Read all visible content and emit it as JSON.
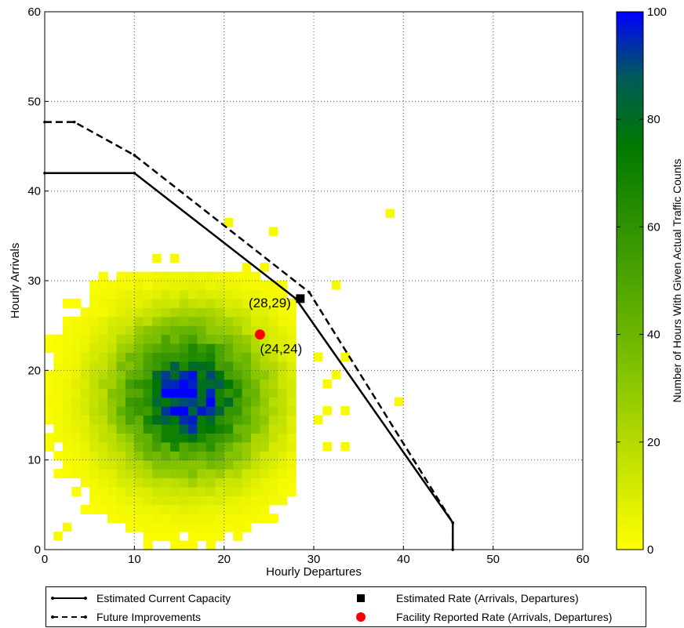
{
  "chart_data": {
    "type": "heatmap",
    "xlabel": "Hourly Departures",
    "ylabel": "Hourly Arrivals",
    "xlim": [
      0,
      60
    ],
    "ylim": [
      0,
      60
    ],
    "xticks": [
      0,
      10,
      20,
      30,
      40,
      50,
      60
    ],
    "yticks": [
      0,
      10,
      20,
      30,
      40,
      50,
      60
    ],
    "grid": true,
    "colorbar": {
      "label": "Number of Hours With Given Actual Traffic Counts",
      "range": [
        0,
        100
      ],
      "ticks": [
        0,
        20,
        40,
        60,
        80,
        100
      ],
      "colors": [
        "#ffff00",
        "#80c000",
        "#008000",
        "#0000ff"
      ]
    },
    "heatmap_model": {
      "center": [
        16,
        17
      ],
      "peak": 100,
      "sigma_x": 5.5,
      "sigma_y": 5.5,
      "extent_x": [
        0,
        28
      ],
      "extent_y": [
        0,
        31
      ]
    },
    "outliers": [
      {
        "x": 20,
        "y": 36
      },
      {
        "x": 25,
        "y": 35
      },
      {
        "x": 38,
        "y": 37
      },
      {
        "x": 32,
        "y": 29
      },
      {
        "x": 27,
        "y": 27
      },
      {
        "x": 30,
        "y": 21
      },
      {
        "x": 33,
        "y": 21
      },
      {
        "x": 32,
        "y": 19
      },
      {
        "x": 31,
        "y": 18
      },
      {
        "x": 39,
        "y": 16
      },
      {
        "x": 33,
        "y": 15
      },
      {
        "x": 31,
        "y": 15
      },
      {
        "x": 30,
        "y": 14
      },
      {
        "x": 31,
        "y": 11
      },
      {
        "x": 33,
        "y": 11
      },
      {
        "x": 12,
        "y": 32
      },
      {
        "x": 14,
        "y": 32
      },
      {
        "x": 9,
        "y": 29
      },
      {
        "x": 11,
        "y": 29
      },
      {
        "x": 6,
        "y": 26
      },
      {
        "x": 22,
        "y": 31
      },
      {
        "x": 24,
        "y": 31
      },
      {
        "x": 1,
        "y": 16
      },
      {
        "x": 1,
        "y": 1
      },
      {
        "x": 2,
        "y": 2
      }
    ],
    "series": [
      {
        "name": "Estimated Current Capacity",
        "style": "solid",
        "x": [
          0,
          10,
          28,
          45.5,
          45.5
        ],
        "y": [
          42,
          42,
          28,
          3,
          0
        ]
      },
      {
        "name": "Future Improvements",
        "style": "dashed",
        "x": [
          0,
          3.3,
          10,
          29.5,
          45.5,
          45.5
        ],
        "y": [
          47.7,
          47.7,
          44,
          28.7,
          3,
          0
        ]
      }
    ],
    "points": [
      {
        "name": "Estimated Rate (Arrivals, Departures)",
        "x": 28.5,
        "y": 28,
        "marker": "square",
        "color": "#000000",
        "label": "(28,29)"
      },
      {
        "name": "Facility Reported Rate (Arrivals, Departures)",
        "x": 24,
        "y": 24,
        "marker": "circle",
        "color": "#ff0000",
        "label": "(24,24)"
      }
    ]
  },
  "legend": {
    "items": [
      {
        "label": "Estimated Current Capacity"
      },
      {
        "label": "Future Improvements"
      },
      {
        "label": "Estimated Rate (Arrivals, Departures)"
      },
      {
        "label": "Facility Reported Rate (Arrivals, Departures)"
      }
    ]
  }
}
